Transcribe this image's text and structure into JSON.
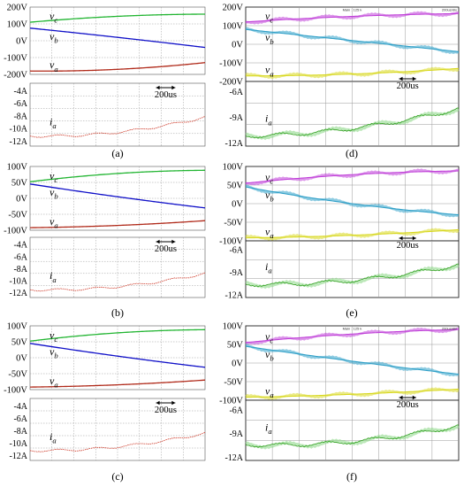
{
  "figure": {
    "panels": [
      {
        "caption": "(a)",
        "style": "sim",
        "top": {
          "ticks": [
            "200V",
            "100V",
            "0V",
            "-100V",
            "-200V"
          ],
          "curves": [
            {
              "id": "vc",
              "symbol": "v",
              "sub": "c",
              "color": "#22b532",
              "values": [
                110,
                145,
                158
              ]
            },
            {
              "id": "vb",
              "symbol": "v",
              "sub": "b",
              "color": "#1010c8",
              "values": [
                75,
                20,
                -40
              ]
            },
            {
              "id": "va",
              "symbol": "v",
              "sub": "a",
              "color": "#b02a1a",
              "values": [
                -180,
                -170,
                -130
              ]
            }
          ]
        },
        "bottom": {
          "ticks": [
            "-4A",
            "-6A",
            "-8A",
            "-10A",
            "-12A"
          ],
          "curve": {
            "id": "ia",
            "symbol": "i",
            "sub": "a",
            "color": "#d04030",
            "values": [
              -11.2,
              -10.6,
              -8.2
            ]
          },
          "scale": "200us"
        }
      },
      {
        "caption": "(b)",
        "style": "sim",
        "top": {
          "ticks": [
            "100V",
            "50V",
            "0V",
            "-50V",
            "-100V"
          ],
          "curves": [
            {
              "id": "vc",
              "symbol": "v",
              "sub": "c",
              "color": "#22b532",
              "values": [
                52,
                78,
                88
              ]
            },
            {
              "id": "vb",
              "symbol": "v",
              "sub": "b",
              "color": "#1010c8",
              "values": [
                45,
                5,
                -30
              ]
            },
            {
              "id": "va",
              "symbol": "v",
              "sub": "a",
              "color": "#b02a1a",
              "values": [
                -92,
                -85,
                -70
              ]
            }
          ]
        },
        "bottom": {
          "ticks": [
            "-4A",
            "-6A",
            "-8A",
            "-10A",
            "-12A"
          ],
          "curve": {
            "id": "ia",
            "symbol": "i",
            "sub": "a",
            "color": "#d04030",
            "values": [
              -11.5,
              -11.0,
              -8.8
            ]
          },
          "scale": "200us"
        }
      },
      {
        "caption": "(c)",
        "style": "sim",
        "top": {
          "ticks": [
            "100V",
            "50V",
            "0V",
            "-50V",
            "-100V"
          ],
          "curves": [
            {
              "id": "vc",
              "symbol": "v",
              "sub": "c",
              "color": "#22b532",
              "values": [
                52,
                78,
                88
              ]
            },
            {
              "id": "vb",
              "symbol": "v",
              "sub": "b",
              "color": "#1010c8",
              "values": [
                45,
                5,
                -30
              ]
            },
            {
              "id": "va",
              "symbol": "v",
              "sub": "a",
              "color": "#b02a1a",
              "values": [
                -92,
                -85,
                -70
              ]
            }
          ]
        },
        "bottom": {
          "ticks": [
            "-4A",
            "-6A",
            "-8A",
            "-10A",
            "-12A"
          ],
          "curve": {
            "id": "ia",
            "symbol": "i",
            "sub": "a",
            "color": "#d04030",
            "values": [
              -11.2,
              -10.6,
              -8.4
            ]
          },
          "scale": "200us"
        }
      },
      {
        "caption": "(d)",
        "style": "scope",
        "top": {
          "ticks": [
            "200V",
            "100V",
            "0V",
            "-100V",
            "-200V"
          ],
          "curves": [
            {
              "id": "vc",
              "symbol": "v",
              "sub": "c",
              "color": "#c040d8",
              "values": [
                120,
                150,
                165
              ]
            },
            {
              "id": "vb",
              "symbol": "v",
              "sub": "b",
              "color": "#30a0c8",
              "values": [
                80,
                20,
                -40
              ]
            },
            {
              "id": "va",
              "symbol": "v",
              "sub": "a",
              "color": "#d8d820",
              "values": [
                -170,
                -160,
                -130
              ]
            }
          ]
        },
        "bottom": {
          "ticks": [
            "-6A",
            "-9A",
            "-12A"
          ],
          "curve": {
            "id": "ia",
            "symbol": "i",
            "sub": "a",
            "color": "#3aa52a",
            "values": [
              -11.2,
              -10.3,
              -8.0
            ]
          },
          "scale": "200us"
        },
        "header_left": "Main : 125 k",
        "header_right": "200us/div"
      },
      {
        "caption": "(e)",
        "style": "scope",
        "top": {
          "ticks": [
            "100V",
            "50V",
            "0V",
            "-50V",
            "-100V"
          ],
          "curves": [
            {
              "id": "vc",
              "symbol": "v",
              "sub": "c",
              "color": "#c040d8",
              "values": [
                55,
                78,
                88
              ]
            },
            {
              "id": "vb",
              "symbol": "v",
              "sub": "b",
              "color": "#30a0c8",
              "values": [
                45,
                0,
                -30
              ]
            },
            {
              "id": "va",
              "symbol": "v",
              "sub": "a",
              "color": "#d8d820",
              "values": [
                -92,
                -85,
                -70
              ]
            }
          ]
        },
        "bottom": {
          "ticks": [
            "-6A",
            "-9A",
            "-12A"
          ],
          "curve": {
            "id": "ia",
            "symbol": "i",
            "sub": "a",
            "color": "#3aa52a",
            "values": [
              -10.6,
              -10.1,
              -8.0
            ]
          },
          "scale": "200us"
        }
      },
      {
        "caption": "(f)",
        "style": "scope",
        "top": {
          "ticks": [
            "100V",
            "50V",
            "0V",
            "-50V",
            "-100V"
          ],
          "curves": [
            {
              "id": "vc",
              "symbol": "v",
              "sub": "c",
              "color": "#c040d8",
              "values": [
                55,
                78,
                90
              ]
            },
            {
              "id": "vb",
              "symbol": "v",
              "sub": "b",
              "color": "#30a0c8",
              "values": [
                45,
                5,
                -30
              ]
            },
            {
              "id": "va",
              "symbol": "v",
              "sub": "a",
              "color": "#d8d820",
              "values": [
                -92,
                -84,
                -70
              ]
            }
          ]
        },
        "bottom": {
          "ticks": [
            "-6A",
            "-9A",
            "-12A"
          ],
          "curve": {
            "id": "ia",
            "symbol": "i",
            "sub": "a",
            "color": "#3aa52a",
            "values": [
              -10.4,
              -10.0,
              -8.0
            ]
          },
          "scale": "200us"
        },
        "header_left": "Main : 125 k",
        "header_right": "200us/div"
      }
    ]
  },
  "chart_data": [
    {
      "type": "line",
      "caption": "(a)",
      "x_unit": "200us per division",
      "series": [
        {
          "name": "v_c",
          "values": [
            110,
            145,
            158
          ]
        },
        {
          "name": "v_b",
          "values": [
            75,
            20,
            -40
          ]
        },
        {
          "name": "v_a",
          "values": [
            -180,
            -170,
            -130
          ]
        },
        {
          "name": "i_a",
          "values": [
            -11.2,
            -10.6,
            -8.2
          ]
        }
      ],
      "y_ticks_voltage": [
        "200V",
        "100V",
        "0V",
        "-100V",
        "-200V"
      ],
      "y_ticks_current": [
        "-4A",
        "-6A",
        "-8A",
        "-10A",
        "-12A"
      ]
    },
    {
      "type": "line",
      "caption": "(b)",
      "x_unit": "200us per division",
      "series": [
        {
          "name": "v_c",
          "values": [
            52,
            78,
            88
          ]
        },
        {
          "name": "v_b",
          "values": [
            45,
            5,
            -30
          ]
        },
        {
          "name": "v_a",
          "values": [
            -92,
            -85,
            -70
          ]
        },
        {
          "name": "i_a",
          "values": [
            -11.5,
            -11.0,
            -8.8
          ]
        }
      ],
      "y_ticks_voltage": [
        "100V",
        "50V",
        "0V",
        "-50V",
        "-100V"
      ],
      "y_ticks_current": [
        "-4A",
        "-6A",
        "-8A",
        "-10A",
        "-12A"
      ]
    },
    {
      "type": "line",
      "caption": "(c)",
      "x_unit": "200us per division",
      "series": [
        {
          "name": "v_c",
          "values": [
            52,
            78,
            88
          ]
        },
        {
          "name": "v_b",
          "values": [
            45,
            5,
            -30
          ]
        },
        {
          "name": "v_a",
          "values": [
            -92,
            -85,
            -70
          ]
        },
        {
          "name": "i_a",
          "values": [
            -11.2,
            -10.6,
            -8.4
          ]
        }
      ],
      "y_ticks_voltage": [
        "100V",
        "50V",
        "0V",
        "-50V",
        "-100V"
      ],
      "y_ticks_current": [
        "-4A",
        "-6A",
        "-8A",
        "-10A",
        "-12A"
      ]
    },
    {
      "type": "line",
      "caption": "(d)",
      "x_unit": "200us per division",
      "series": [
        {
          "name": "v_c",
          "values": [
            120,
            150,
            165
          ]
        },
        {
          "name": "v_b",
          "values": [
            80,
            20,
            -40
          ]
        },
        {
          "name": "v_a",
          "values": [
            -170,
            -160,
            -130
          ]
        },
        {
          "name": "i_a",
          "values": [
            -11.2,
            -10.3,
            -8.0
          ]
        }
      ],
      "y_ticks_voltage": [
        "200V",
        "100V",
        "0V",
        "-100V",
        "-200V"
      ],
      "y_ticks_current": [
        "-6A",
        "-9A",
        "-12A"
      ]
    },
    {
      "type": "line",
      "caption": "(e)",
      "x_unit": "200us per division",
      "series": [
        {
          "name": "v_c",
          "values": [
            55,
            78,
            88
          ]
        },
        {
          "name": "v_b",
          "values": [
            45,
            0,
            -30
          ]
        },
        {
          "name": "v_a",
          "values": [
            -92,
            -85,
            -70
          ]
        },
        {
          "name": "i_a",
          "values": [
            -10.6,
            -10.1,
            -8.0
          ]
        }
      ],
      "y_ticks_voltage": [
        "100V",
        "50V",
        "0V",
        "-50V",
        "-100V"
      ],
      "y_ticks_current": [
        "-6A",
        "-9A",
        "-12A"
      ]
    },
    {
      "type": "line",
      "caption": "(f)",
      "x_unit": "200us per division",
      "series": [
        {
          "name": "v_c",
          "values": [
            55,
            78,
            90
          ]
        },
        {
          "name": "v_b",
          "values": [
            45,
            5,
            -30
          ]
        },
        {
          "name": "v_a",
          "values": [
            -92,
            -84,
            -70
          ]
        },
        {
          "name": "i_a",
          "values": [
            -10.4,
            -10.0,
            -8.0
          ]
        }
      ],
      "y_ticks_voltage": [
        "100V",
        "50V",
        "0V",
        "-50V",
        "-100V"
      ],
      "y_ticks_current": [
        "-6A",
        "-9A",
        "-12A"
      ]
    }
  ]
}
